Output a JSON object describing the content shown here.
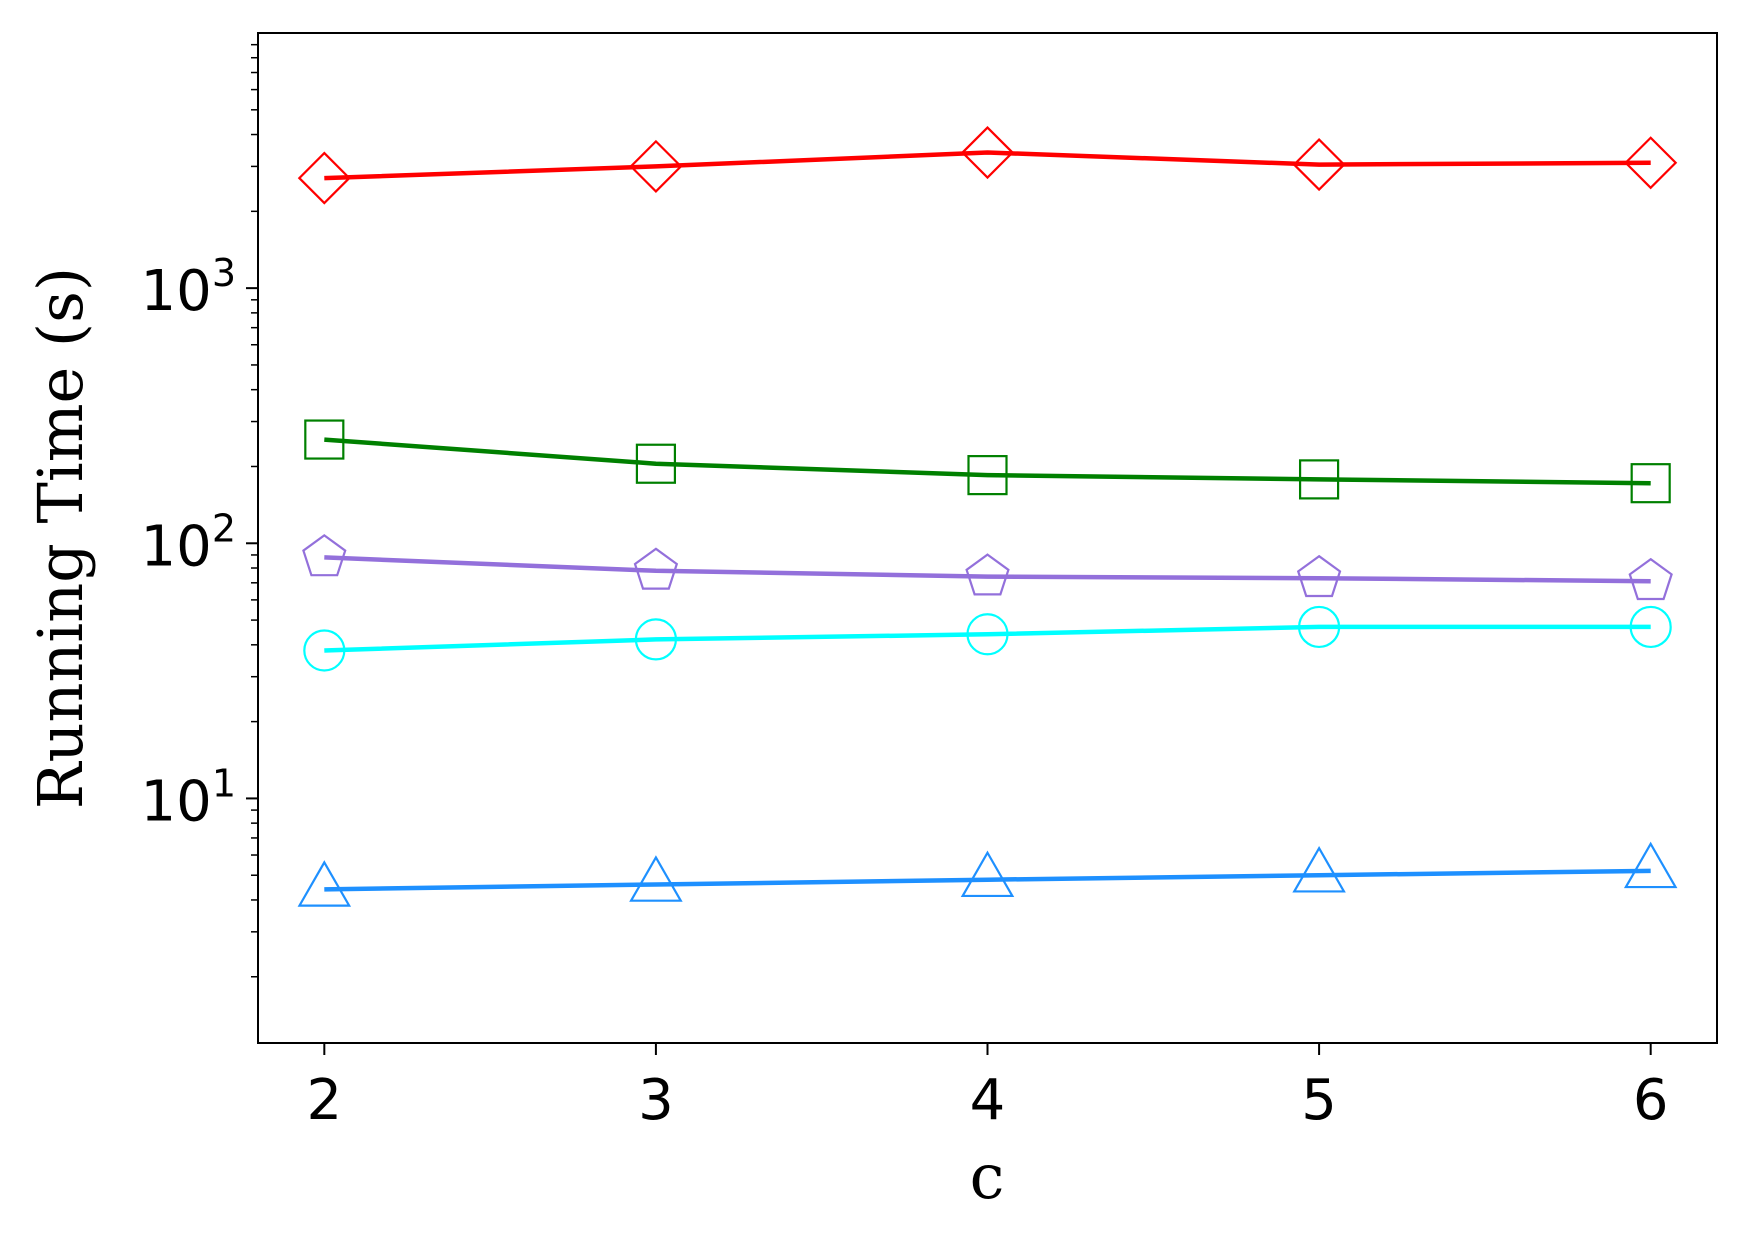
{
  "chart_data": {
    "type": "line",
    "title": "",
    "xlabel": "c",
    "ylabel": "Running Time (s)",
    "yscale": "log",
    "x": [
      2,
      3,
      4,
      5,
      6
    ],
    "xlim": [
      1.8,
      6.2
    ],
    "ylim": [
      1.1,
      10000
    ],
    "x_ticks": [
      "2",
      "3",
      "4",
      "5",
      "6"
    ],
    "y_ticks": [
      {
        "value": 10,
        "base": "10",
        "exp": "1"
      },
      {
        "value": 100,
        "base": "10",
        "exp": "2"
      },
      {
        "value": 1000,
        "base": "10",
        "exp": "3"
      }
    ],
    "grid": false,
    "legend": "none",
    "series": [
      {
        "values": [
          2700,
          3000,
          3400,
          3050,
          3100
        ],
        "color": "#ff0000",
        "marker": "diamond"
      },
      {
        "values": [
          255,
          205,
          185,
          178,
          172
        ],
        "color": "#008000",
        "marker": "square"
      },
      {
        "values": [
          88,
          78,
          74,
          73,
          71
        ],
        "color": "#9370db",
        "marker": "pentagon"
      },
      {
        "values": [
          38,
          42,
          44,
          47,
          47
        ],
        "color": "#00ffff",
        "marker": "circle"
      },
      {
        "values": [
          4.4,
          4.6,
          4.8,
          5.0,
          5.2
        ],
        "color": "#1e90ff",
        "marker": "triangle"
      }
    ]
  }
}
